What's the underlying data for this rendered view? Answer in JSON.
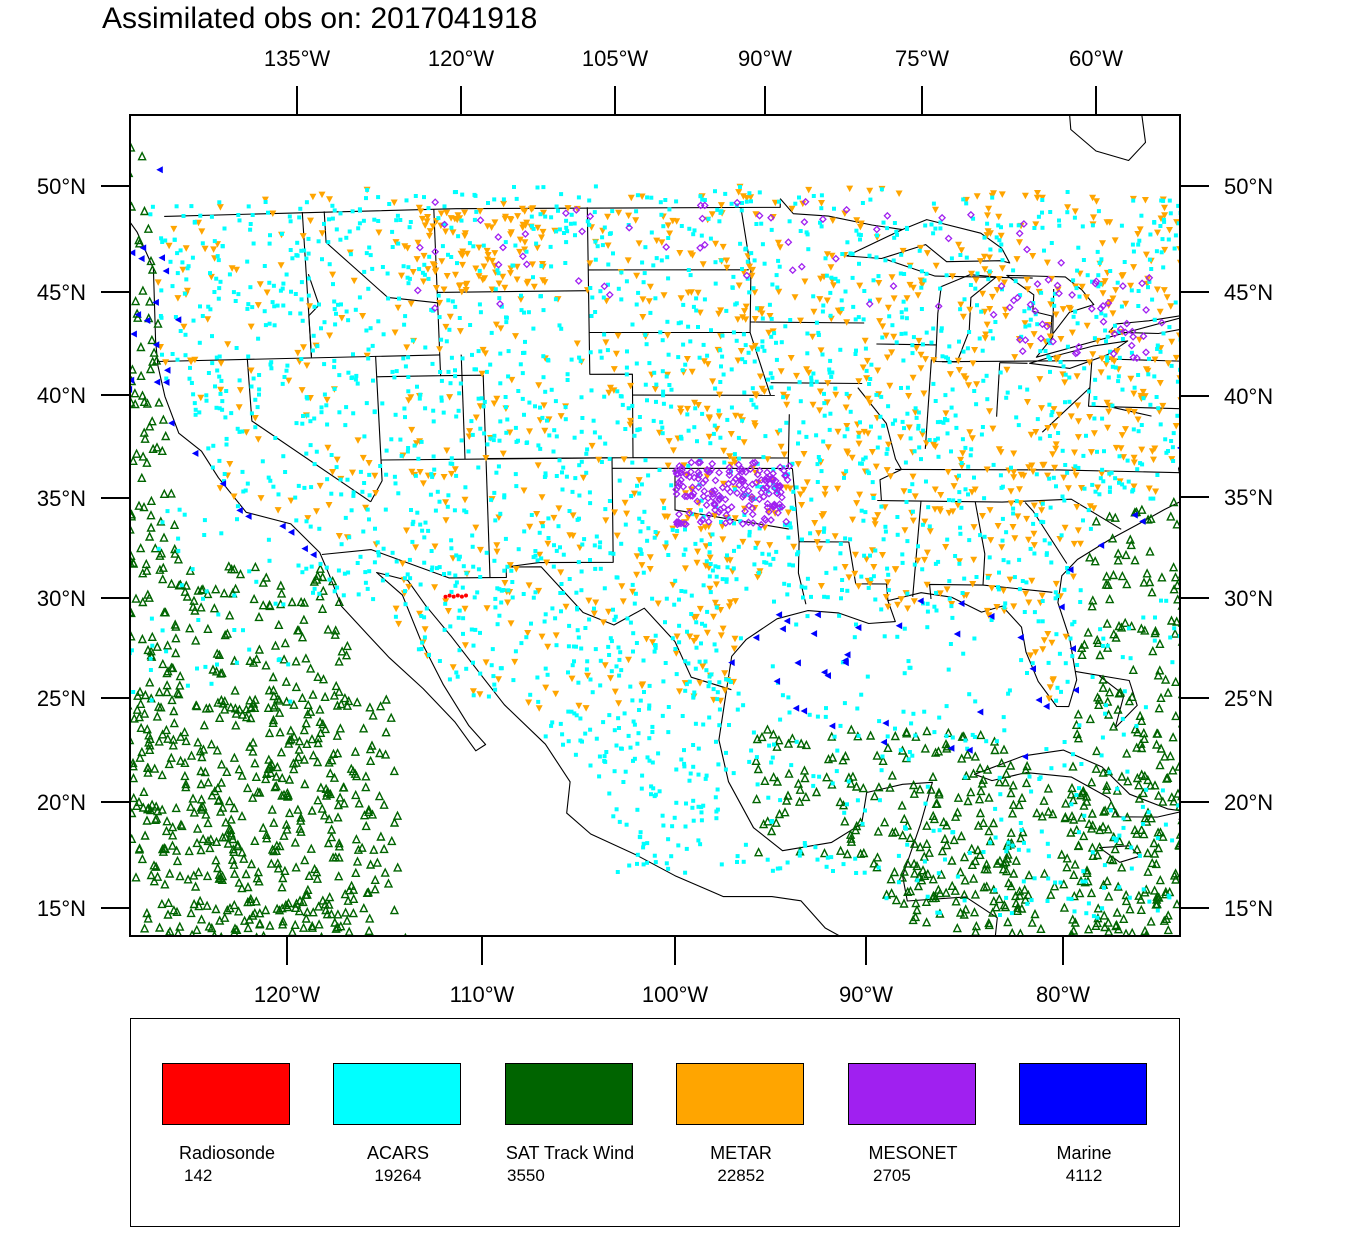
{
  "title": "Assimilated obs on: 2017041918",
  "map": {
    "frame_bounds": {
      "lon_west": -128.3,
      "lon_east": -74.4,
      "lat_south": 13.6,
      "lat_north": 53.4
    },
    "axes": {
      "top_lon_labels": [
        "135°W",
        "120°W",
        "105°W",
        "90°W",
        "75°W",
        "60°W"
      ],
      "bottom_lon_labels": [
        "120°W",
        "110°W",
        "100°W",
        "90°W",
        "80°W"
      ],
      "left_lat_labels": [
        "50°N",
        "45°N",
        "40°N",
        "35°N",
        "30°N",
        "25°N",
        "20°N",
        "15°N"
      ],
      "right_lat_labels": [
        "50°N",
        "45°N",
        "40°N",
        "35°N",
        "30°N",
        "25°N",
        "20°N",
        "15°N"
      ]
    },
    "observation_types": [
      {
        "name": "Radiosonde",
        "count": "142",
        "color": "#ff0000",
        "marker": "dot"
      },
      {
        "name": "ACARS",
        "count": "19264",
        "color": "#00ffff",
        "marker": "square"
      },
      {
        "name": "SAT Track Wind",
        "count": "3550",
        "color": "#006400",
        "marker": "triangle-up-open"
      },
      {
        "name": "METAR",
        "count": "22852",
        "color": "#ffa500",
        "marker": "triangle-down"
      },
      {
        "name": "MESONET",
        "count": "2705",
        "color": "#a020f0",
        "marker": "diamond"
      },
      {
        "name": "Marine",
        "count": "4112",
        "color": "#0000ff",
        "marker": "triangle-left"
      }
    ]
  },
  "legend": {
    "items": [
      {
        "label": "Radiosonde",
        "count": "142",
        "color": "#ff0000"
      },
      {
        "label": "ACARS",
        "count": "19264",
        "color": "#00ffff"
      },
      {
        "label": "SAT Track Wind",
        "count": "3550",
        "color": "#006400"
      },
      {
        "label": "METAR",
        "count": "22852",
        "color": "#ffa500"
      },
      {
        "label": "MESONET",
        "count": "2705",
        "color": "#a020f0"
      },
      {
        "label": "Marine",
        "count": "4112",
        "color": "#0000ff"
      }
    ]
  }
}
